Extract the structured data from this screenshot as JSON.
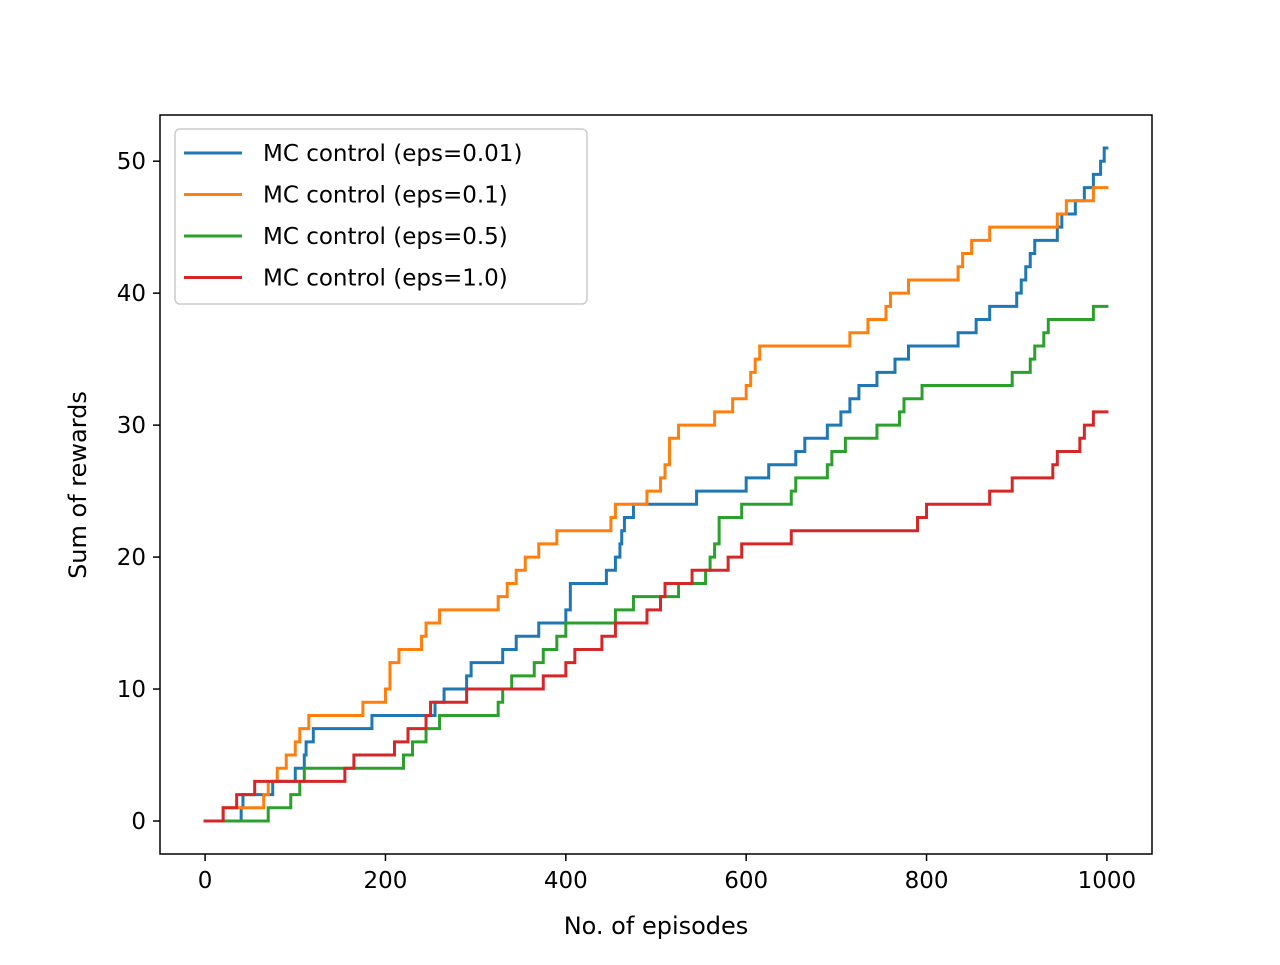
{
  "chart_data": {
    "type": "line",
    "title": "",
    "xlabel": "No. of episodes",
    "ylabel": "Sum of rewards",
    "xlim": [
      -50,
      1050
    ],
    "ylim": [
      -2.5,
      53.5
    ],
    "xticks": [
      0,
      200,
      400,
      600,
      800,
      1000
    ],
    "yticks": [
      0,
      10,
      20,
      30,
      40,
      50
    ],
    "grid": false,
    "legend_position": "top-left",
    "step": true,
    "series": [
      {
        "name": "MC control (eps=0.01)",
        "color": "#1f77b4",
        "points": [
          [
            0,
            0
          ],
          [
            40,
            0
          ],
          [
            40,
            1
          ],
          [
            42,
            2
          ],
          [
            75,
            3
          ],
          [
            100,
            4
          ],
          [
            110,
            5
          ],
          [
            112,
            6
          ],
          [
            120,
            7
          ],
          [
            185,
            8
          ],
          [
            255,
            9
          ],
          [
            265,
            10
          ],
          [
            290,
            11
          ],
          [
            295,
            12
          ],
          [
            330,
            13
          ],
          [
            345,
            14
          ],
          [
            370,
            15
          ],
          [
            400,
            16
          ],
          [
            405,
            18
          ],
          [
            445,
            19
          ],
          [
            455,
            20
          ],
          [
            460,
            21
          ],
          [
            462,
            22
          ],
          [
            465,
            23
          ],
          [
            475,
            24
          ],
          [
            545,
            25
          ],
          [
            600,
            26
          ],
          [
            625,
            27
          ],
          [
            655,
            28
          ],
          [
            665,
            29
          ],
          [
            690,
            30
          ],
          [
            705,
            31
          ],
          [
            715,
            32
          ],
          [
            725,
            33
          ],
          [
            745,
            34
          ],
          [
            765,
            35
          ],
          [
            780,
            36
          ],
          [
            835,
            37
          ],
          [
            855,
            38
          ],
          [
            870,
            39
          ],
          [
            900,
            40
          ],
          [
            905,
            41
          ],
          [
            910,
            42
          ],
          [
            915,
            43
          ],
          [
            920,
            44
          ],
          [
            945,
            45
          ],
          [
            950,
            46
          ],
          [
            965,
            47
          ],
          [
            975,
            48
          ],
          [
            985,
            49
          ],
          [
            993,
            50
          ],
          [
            997,
            51
          ],
          [
            1000,
            51
          ]
        ]
      },
      {
        "name": "MC control (eps=0.1)",
        "color": "#ff7f0e",
        "points": [
          [
            0,
            0
          ],
          [
            20,
            0
          ],
          [
            20,
            1
          ],
          [
            65,
            2
          ],
          [
            70,
            3
          ],
          [
            80,
            4
          ],
          [
            90,
            5
          ],
          [
            100,
            6
          ],
          [
            105,
            7
          ],
          [
            115,
            8
          ],
          [
            175,
            9
          ],
          [
            200,
            10
          ],
          [
            205,
            12
          ],
          [
            215,
            13
          ],
          [
            240,
            14
          ],
          [
            245,
            15
          ],
          [
            260,
            16
          ],
          [
            325,
            17
          ],
          [
            335,
            18
          ],
          [
            345,
            19
          ],
          [
            355,
            20
          ],
          [
            370,
            21
          ],
          [
            390,
            22
          ],
          [
            450,
            23
          ],
          [
            455,
            24
          ],
          [
            490,
            25
          ],
          [
            505,
            26
          ],
          [
            510,
            27
          ],
          [
            515,
            29
          ],
          [
            525,
            30
          ],
          [
            565,
            31
          ],
          [
            585,
            32
          ],
          [
            600,
            33
          ],
          [
            605,
            34
          ],
          [
            610,
            35
          ],
          [
            615,
            36
          ],
          [
            715,
            37
          ],
          [
            735,
            38
          ],
          [
            755,
            39
          ],
          [
            760,
            40
          ],
          [
            780,
            41
          ],
          [
            835,
            42
          ],
          [
            840,
            43
          ],
          [
            850,
            44
          ],
          [
            870,
            45
          ],
          [
            945,
            46
          ],
          [
            955,
            47
          ],
          [
            985,
            48
          ],
          [
            1000,
            48
          ]
        ]
      },
      {
        "name": "MC control (eps=0.5)",
        "color": "#2ca02c",
        "points": [
          [
            0,
            0
          ],
          [
            70,
            0
          ],
          [
            70,
            1
          ],
          [
            95,
            2
          ],
          [
            105,
            3
          ],
          [
            110,
            4
          ],
          [
            165,
            4
          ],
          [
            220,
            5
          ],
          [
            230,
            6
          ],
          [
            245,
            7
          ],
          [
            260,
            8
          ],
          [
            325,
            9
          ],
          [
            330,
            10
          ],
          [
            340,
            11
          ],
          [
            365,
            12
          ],
          [
            375,
            13
          ],
          [
            390,
            14
          ],
          [
            400,
            15
          ],
          [
            455,
            16
          ],
          [
            475,
            17
          ],
          [
            525,
            18
          ],
          [
            555,
            19
          ],
          [
            560,
            20
          ],
          [
            565,
            21
          ],
          [
            570,
            23
          ],
          [
            595,
            24
          ],
          [
            650,
            25
          ],
          [
            655,
            26
          ],
          [
            690,
            27
          ],
          [
            695,
            28
          ],
          [
            710,
            29
          ],
          [
            745,
            30
          ],
          [
            770,
            31
          ],
          [
            775,
            32
          ],
          [
            795,
            33
          ],
          [
            895,
            34
          ],
          [
            915,
            35
          ],
          [
            920,
            36
          ],
          [
            930,
            37
          ],
          [
            935,
            38
          ],
          [
            985,
            39
          ],
          [
            1000,
            39
          ]
        ]
      },
      {
        "name": "MC control (eps=1.0)",
        "color": "#d62728",
        "points": [
          [
            0,
            0
          ],
          [
            20,
            0
          ],
          [
            20,
            1
          ],
          [
            35,
            2
          ],
          [
            55,
            3
          ],
          [
            90,
            3
          ],
          [
            155,
            4
          ],
          [
            165,
            5
          ],
          [
            210,
            6
          ],
          [
            225,
            7
          ],
          [
            245,
            8
          ],
          [
            250,
            9
          ],
          [
            290,
            10
          ],
          [
            375,
            11
          ],
          [
            400,
            12
          ],
          [
            410,
            13
          ],
          [
            440,
            14
          ],
          [
            455,
            15
          ],
          [
            490,
            16
          ],
          [
            505,
            17
          ],
          [
            510,
            18
          ],
          [
            540,
            19
          ],
          [
            580,
            20
          ],
          [
            595,
            21
          ],
          [
            650,
            22
          ],
          [
            790,
            23
          ],
          [
            800,
            24
          ],
          [
            870,
            25
          ],
          [
            895,
            26
          ],
          [
            940,
            27
          ],
          [
            945,
            28
          ],
          [
            970,
            29
          ],
          [
            975,
            30
          ],
          [
            985,
            31
          ],
          [
            1000,
            31
          ]
        ]
      }
    ]
  }
}
